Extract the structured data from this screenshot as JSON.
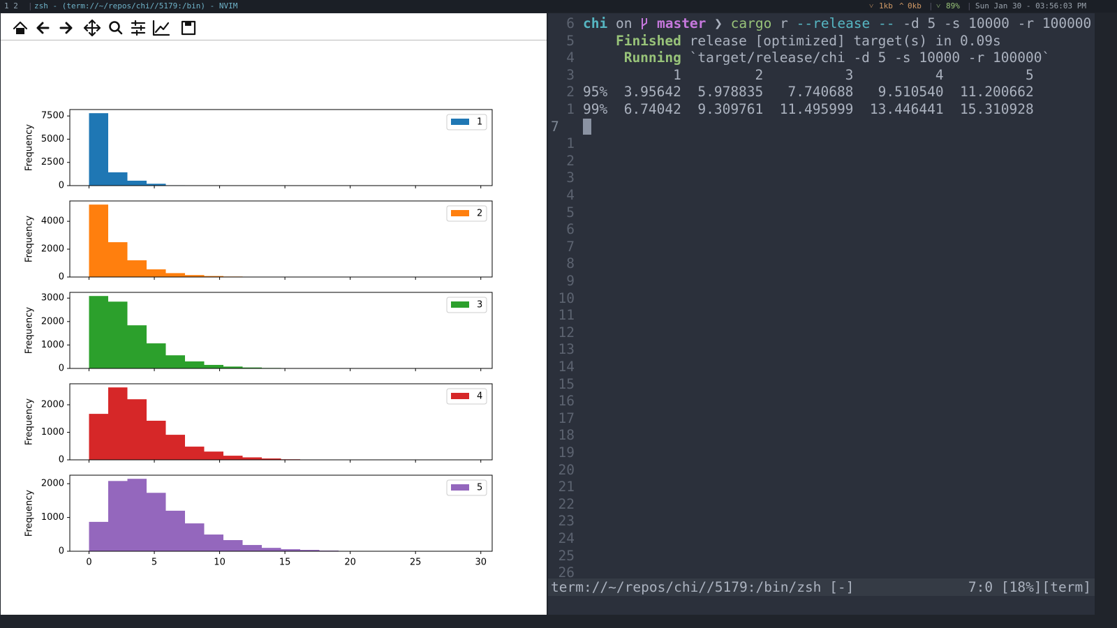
{
  "top_bar": {
    "workspaces": "1 2",
    "window_title": "zsh - (term://~/repos/chi//5179:/bin) - NVIM",
    "net_down": "1kb",
    "net_up": "0kb",
    "battery": "89%",
    "clock": "Sun Jan 30 - 03:56:03 PM"
  },
  "chart_data": [
    {
      "type": "histogram",
      "ylabel": "Frequency",
      "legend": "upper right",
      "series": [
        {
          "name": "1",
          "color": "#1f77b4"
        }
      ],
      "bins": [
        0,
        1.47,
        2.94,
        4.41,
        5.88,
        7.35,
        8.82,
        10.29,
        11.76,
        13.23,
        14.7,
        16.17,
        17.64,
        19.11,
        20.58,
        22.05,
        23.52,
        24.99,
        26.46,
        27.93,
        29.4
      ],
      "values": [
        7800,
        1430,
        530,
        200,
        40,
        0,
        0,
        0,
        0,
        0,
        0,
        0,
        0,
        0,
        0,
        0,
        0,
        0,
        0,
        0
      ],
      "xlim": [
        -1.47,
        30.87
      ],
      "xticks": [
        0,
        5,
        10,
        15,
        20,
        25,
        30
      ],
      "ylim": [
        0,
        8190
      ],
      "yticks": [
        0,
        2500,
        5000,
        7500
      ]
    },
    {
      "type": "histogram",
      "ylabel": "Frequency",
      "legend": "upper right",
      "series": [
        {
          "name": "2",
          "color": "#ff7f0e"
        }
      ],
      "bins": [
        0,
        1.47,
        2.94,
        4.41,
        5.88,
        7.35,
        8.82,
        10.29,
        11.76,
        13.23,
        14.7,
        16.17,
        17.64,
        19.11,
        20.58,
        22.05,
        23.52,
        24.99,
        26.46,
        27.93,
        29.4
      ],
      "values": [
        5200,
        2500,
        1200,
        550,
        280,
        140,
        70,
        35,
        15,
        10,
        0,
        0,
        0,
        0,
        0,
        0,
        0,
        0,
        0,
        0
      ],
      "xlim": [
        -1.47,
        30.87
      ],
      "xticks": [
        0,
        5,
        10,
        15,
        20,
        25,
        30
      ],
      "ylim": [
        0,
        5460
      ],
      "yticks": [
        0,
        2000,
        4000
      ]
    },
    {
      "type": "histogram",
      "ylabel": "Frequency",
      "legend": "upper right",
      "series": [
        {
          "name": "3",
          "color": "#2ca02c"
        }
      ],
      "bins": [
        0,
        1.47,
        2.94,
        4.41,
        5.88,
        7.35,
        8.82,
        10.29,
        11.76,
        13.23,
        14.7,
        16.17,
        17.64,
        19.11,
        20.58,
        22.05,
        23.52,
        24.99,
        26.46,
        27.93,
        29.4
      ],
      "values": [
        3090,
        2850,
        1840,
        1070,
        560,
        300,
        150,
        80,
        40,
        20,
        10,
        0,
        0,
        0,
        0,
        0,
        0,
        0,
        0,
        0
      ],
      "xlim": [
        -1.47,
        30.87
      ],
      "xticks": [
        0,
        5,
        10,
        15,
        20,
        25,
        30
      ],
      "ylim": [
        0,
        3245
      ],
      "yticks": [
        0,
        1000,
        2000,
        3000
      ]
    },
    {
      "type": "histogram",
      "ylabel": "Frequency",
      "legend": "upper right",
      "series": [
        {
          "name": "4",
          "color": "#d62728"
        }
      ],
      "bins": [
        0,
        1.47,
        2.94,
        4.41,
        5.88,
        7.35,
        8.82,
        10.29,
        11.76,
        13.23,
        14.7,
        16.17,
        17.64,
        19.11,
        20.58,
        22.05,
        23.52,
        24.99,
        26.46,
        27.93,
        29.4
      ],
      "values": [
        1670,
        2630,
        2200,
        1420,
        910,
        480,
        300,
        150,
        90,
        50,
        20,
        10,
        0,
        0,
        0,
        0,
        0,
        0,
        0,
        0
      ],
      "xlim": [
        -1.47,
        30.87
      ],
      "xticks": [
        0,
        5,
        10,
        15,
        20,
        25,
        30
      ],
      "ylim": [
        0,
        2762
      ],
      "yticks": [
        0,
        1000,
        2000
      ]
    },
    {
      "type": "histogram",
      "ylabel": "Frequency",
      "legend": "upper right",
      "series": [
        {
          "name": "5",
          "color": "#9467bd"
        }
      ],
      "bins": [
        0,
        1.47,
        2.94,
        4.41,
        5.88,
        7.35,
        8.82,
        10.29,
        11.76,
        13.23,
        14.7,
        16.17,
        17.64,
        19.11,
        20.58,
        22.05,
        23.52,
        24.99,
        26.46,
        27.93,
        29.4
      ],
      "values": [
        870,
        2080,
        2145,
        1730,
        1200,
        825,
        495,
        330,
        185,
        100,
        60,
        40,
        20,
        10,
        5,
        0,
        0,
        0,
        0,
        0
      ],
      "xlim": [
        -1.47,
        30.87
      ],
      "xticks": [
        0,
        5,
        10,
        15,
        20,
        25,
        30
      ],
      "ylim": [
        0,
        2252
      ],
      "yticks": [
        0,
        1000,
        2000
      ]
    }
  ],
  "terminal": {
    "prompt": {
      "dir": "chi",
      "on": "on",
      "branch": "master",
      "symbol": "❯",
      "cmd": "cargo",
      "arg": "r",
      "flags": "--release --",
      "rest": "-d 5 -s 10000 -r 100000"
    },
    "finished": {
      "label": "Finished",
      "text": "release [optimized] target(s) in 0.09s"
    },
    "running": {
      "label": "Running",
      "text": "`target/release/chi -d 5 -s 10000 -r 100000`"
    },
    "table": [
      "           1         2          3          4          5",
      "95%  3.95642  5.978835   7.740688   9.510540  11.200662",
      "99%  6.74042  9.309761  11.495999  13.446441  15.310928"
    ],
    "line_numbers": [
      "6",
      "5",
      "4",
      "3",
      "2",
      "1",
      "7",
      "1",
      "2",
      "3",
      "4",
      "5",
      "6",
      "7",
      "8",
      "9",
      "10",
      "11",
      "12",
      "13",
      "14",
      "15",
      "16",
      "17",
      "18",
      "19",
      "20",
      "21",
      "22",
      "23",
      "24",
      "25",
      "26"
    ],
    "status_left": "term://~/repos/chi//5179:/bin/zsh [-]",
    "status_right": "7:0 [18%][term]"
  }
}
